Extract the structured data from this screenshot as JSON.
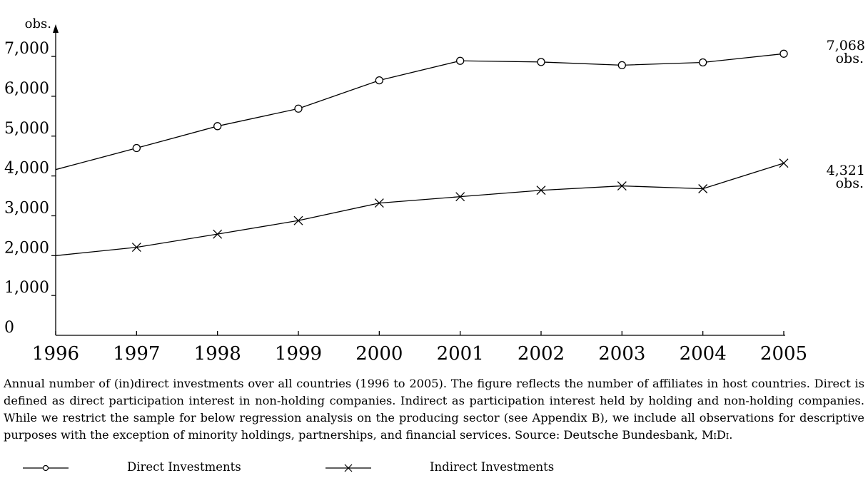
{
  "chart_data": {
    "type": "line",
    "title": "",
    "xlabel": "",
    "ylabel": "obs.",
    "x": [
      1996,
      1997,
      1998,
      1999,
      2000,
      2001,
      2002,
      2003,
      2004,
      2005
    ],
    "x_tick_labels": [
      "1996",
      "1997",
      "1998",
      "1999",
      "2000",
      "2001",
      "2002",
      "2003",
      "2004",
      "2005"
    ],
    "y_tick_labels": [
      "0",
      "1,000",
      "2,000",
      "3,000",
      "4,000",
      "5,000",
      "6,000",
      "7,000"
    ],
    "y_ticks": [
      0,
      1000,
      2000,
      3000,
      4000,
      5000,
      6000,
      7000
    ],
    "ylim": [
      0,
      7700
    ],
    "grid": false,
    "series": [
      {
        "name": "Direct Investments",
        "marker": "circle",
        "values": [
          4160,
          4700,
          5250,
          5690,
          6400,
          6890,
          6860,
          6780,
          6850,
          7068
        ]
      },
      {
        "name": "Indirect Investments",
        "marker": "cross",
        "values": [
          2000,
          2210,
          2540,
          2880,
          3320,
          3480,
          3640,
          3750,
          3680,
          4321
        ]
      }
    ],
    "annotations": [
      {
        "series": 0,
        "value": "7,068",
        "unit": "obs."
      },
      {
        "series": 1,
        "value": "4,321",
        "unit": "obs."
      }
    ]
  },
  "caption": "Annual number of (in)direct investments over all countries (1996 to 2005). The figure reflects the number of affiliates in host countries. Direct is defined as direct participation interest in non-holding companies. Indirect as participation interest held by holding and non-holding companies. While we restrict the sample for below regression analysis on the producing sector (see Appendix B), we include all observations for descriptive purposes with the exception of minority holdings, partnerships, and financial services. Source: Deutsche Bundesbank, ",
  "caption_source": "MiDi",
  "caption_end": ".",
  "legend": {
    "direct_label": "Direct Investments",
    "indirect_label": "Indirect Investments"
  }
}
